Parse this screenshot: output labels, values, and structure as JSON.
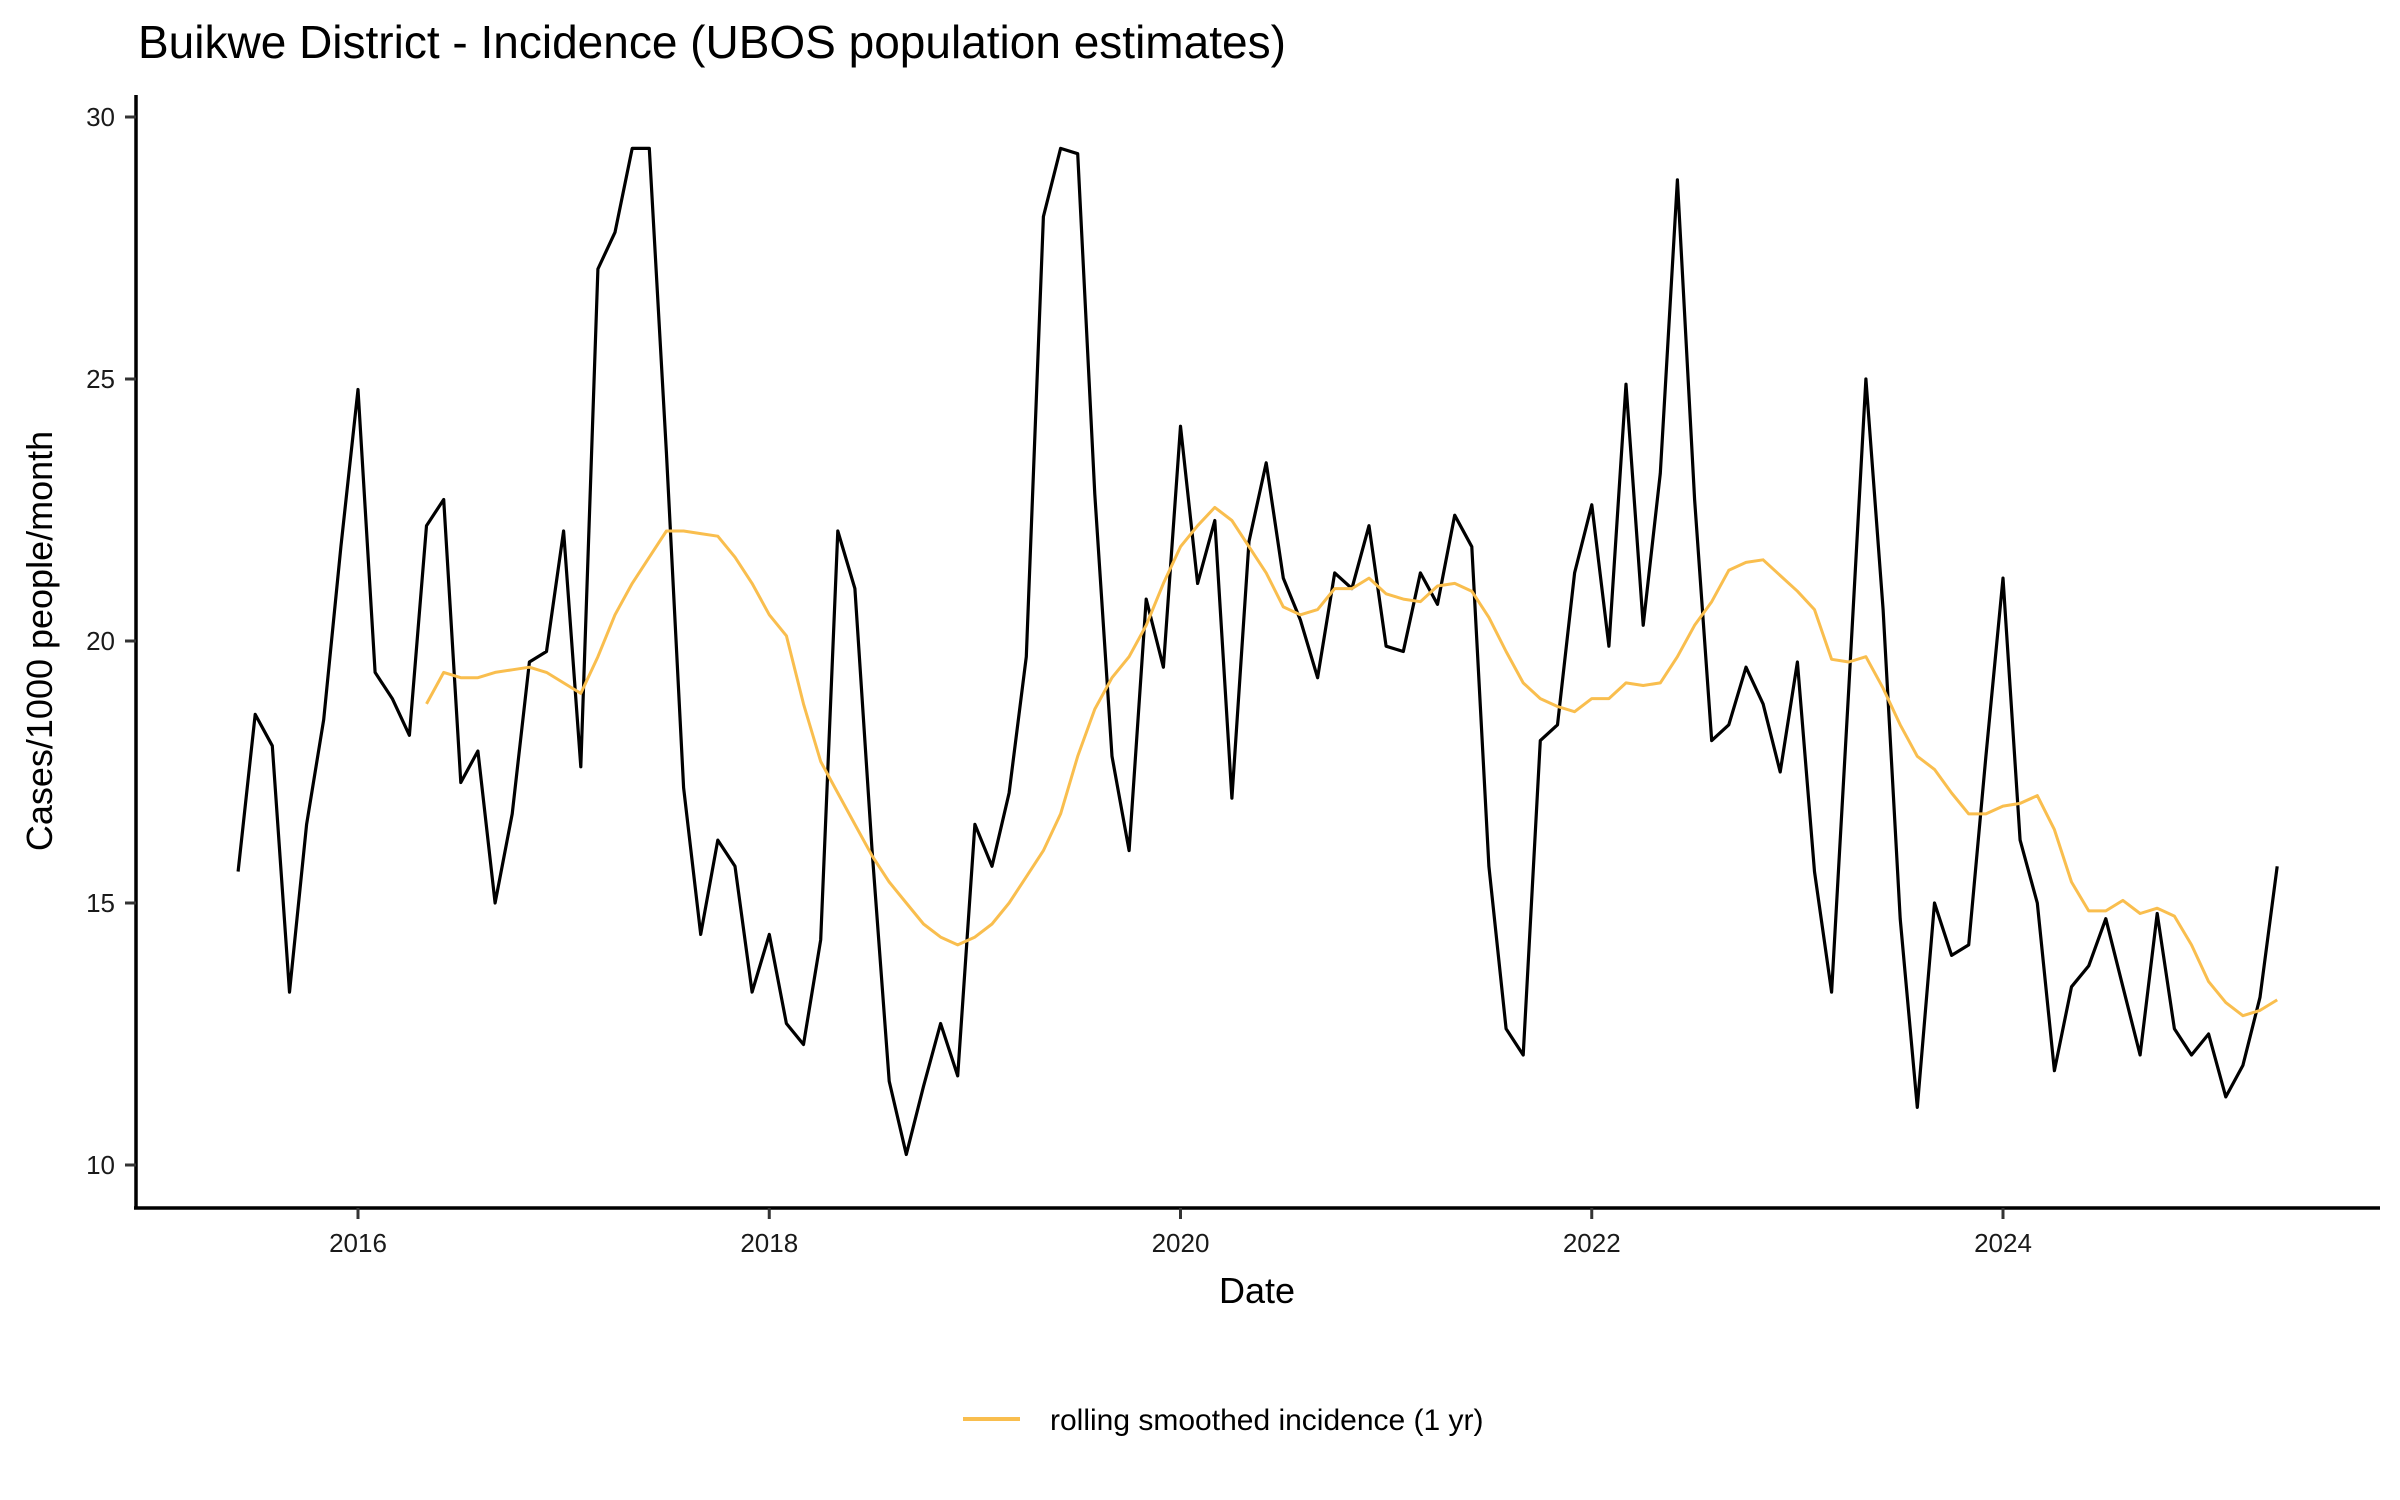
{
  "chart_data": {
    "type": "line",
    "title": "Buikwe District - Incidence (UBOS population estimates)",
    "xlabel": "Date",
    "ylabel": "Cases/1000 people/month",
    "xlim": [
      2014.92,
      2025.92
    ],
    "ylim": [
      9.2,
      30.5
    ],
    "x_ticks": [
      2016,
      2018,
      2020,
      2022,
      2024
    ],
    "x_tick_labels": [
      "2016",
      "2018",
      "2020",
      "2022",
      "2024"
    ],
    "y_ticks": [
      10,
      15,
      20,
      25,
      30
    ],
    "y_tick_labels": [
      "10",
      "15",
      "20",
      "25",
      "30"
    ],
    "grid": false,
    "legend": {
      "position": "bottom",
      "entries": [
        "rolling smoothed incidence (1 yr)"
      ]
    },
    "series": [
      {
        "name": "incidence",
        "color": "#000000",
        "show_in_legend": false,
        "start": "2015-06",
        "frequency": "monthly",
        "values": [
          15.6,
          18.6,
          18.0,
          13.3,
          16.5,
          18.5,
          21.8,
          24.8,
          19.4,
          18.9,
          18.2,
          22.2,
          22.7,
          17.3,
          17.9,
          15.0,
          16.7,
          19.6,
          19.8,
          22.1,
          17.6,
          27.1,
          27.8,
          29.4,
          29.4,
          23.6,
          17.2,
          14.4,
          16.2,
          15.7,
          13.3,
          14.4,
          12.7,
          12.3,
          14.3,
          22.1,
          21.0,
          16.0,
          11.6,
          10.2,
          11.5,
          12.7,
          11.7,
          16.5,
          15.7,
          17.1,
          19.7,
          28.1,
          29.4,
          29.3,
          22.8,
          17.8,
          16.0,
          20.8,
          19.5,
          24.1,
          21.1,
          22.3,
          17.0,
          21.9,
          23.4,
          21.2,
          20.4,
          19.3,
          21.3,
          21.0,
          22.2,
          19.9,
          19.8,
          21.3,
          20.7,
          22.4,
          21.8,
          15.7,
          12.6,
          12.1,
          18.1,
          18.4,
          21.3,
          22.6,
          19.9,
          24.9,
          20.3,
          23.2,
          28.8,
          22.7,
          18.1,
          18.4,
          19.5,
          18.8,
          17.5,
          19.6,
          15.6,
          13.3,
          19.1,
          25.0,
          20.6,
          14.7,
          11.1,
          15.0,
          14.0,
          14.2,
          17.8,
          21.2,
          16.2,
          15.0,
          11.8,
          13.4,
          13.8,
          14.7,
          13.4,
          12.1,
          14.8,
          12.6,
          12.1,
          12.5,
          11.3,
          11.9,
          13.2,
          15.7
        ]
      },
      {
        "name": "rolling smoothed incidence (1 yr)",
        "color": "#F9BE4E",
        "show_in_legend": true,
        "start": "2016-05",
        "frequency": "monthly",
        "values": [
          18.8,
          19.4,
          19.3,
          19.3,
          19.4,
          19.45,
          19.5,
          19.4,
          19.2,
          19.0,
          19.7,
          20.5,
          21.1,
          21.6,
          22.1,
          22.1,
          22.05,
          22.0,
          21.6,
          21.1,
          20.5,
          20.1,
          18.8,
          17.7,
          17.1,
          16.5,
          15.9,
          15.4,
          15.0,
          14.6,
          14.35,
          14.2,
          14.35,
          14.6,
          15.0,
          15.5,
          16.0,
          16.7,
          17.8,
          18.7,
          19.3,
          19.7,
          20.3,
          21.1,
          21.8,
          22.2,
          22.55,
          22.3,
          21.8,
          21.3,
          20.65,
          20.5,
          20.6,
          21.0,
          21.0,
          21.2,
          20.9,
          20.8,
          20.75,
          21.05,
          21.1,
          20.95,
          20.45,
          19.8,
          19.2,
          18.9,
          18.75,
          18.65,
          18.9,
          18.9,
          19.2,
          19.15,
          19.2,
          19.7,
          20.3,
          20.75,
          21.35,
          21.5,
          21.55,
          21.25,
          20.95,
          20.6,
          19.65,
          19.6,
          19.7,
          19.1,
          18.4,
          17.8,
          17.55,
          17.1,
          16.7,
          16.7,
          16.85,
          16.9,
          17.05,
          16.4,
          15.4,
          14.85,
          14.85,
          15.05,
          14.8,
          14.9,
          14.75,
          14.2,
          13.5,
          13.1,
          12.85,
          12.95,
          13.15
        ]
      }
    ]
  }
}
